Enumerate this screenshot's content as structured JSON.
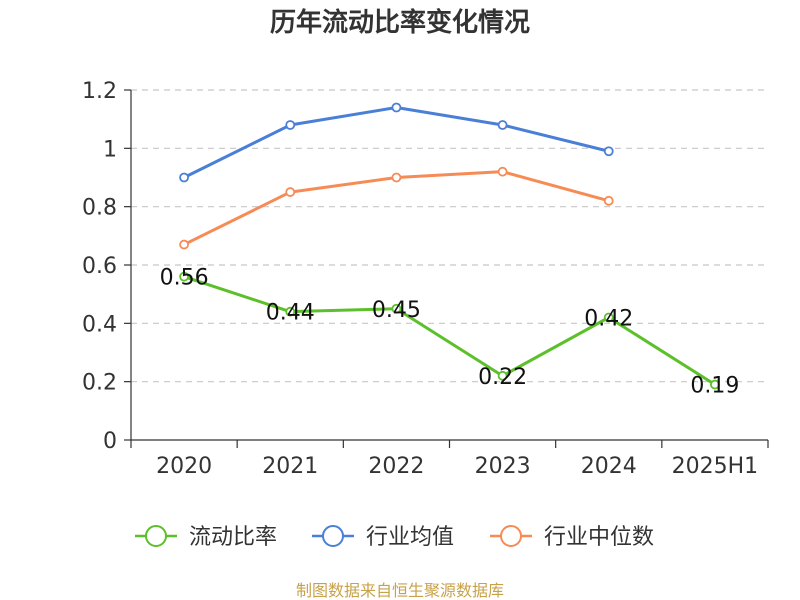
{
  "chart_data": {
    "type": "line",
    "title": "历年流动比率变化情况",
    "categories": [
      "2020",
      "2021",
      "2022",
      "2023",
      "2024",
      "2025H1"
    ],
    "ylim": [
      0,
      1.2
    ],
    "yticks": [
      "0",
      "0.2",
      "0.4",
      "0.6",
      "0.8",
      "1",
      "1.2"
    ],
    "grid": true,
    "legend_position": "bottom",
    "series": [
      {
        "name": "流动比率",
        "color": "#5cc02a",
        "values": [
          0.56,
          0.44,
          0.45,
          0.22,
          0.42,
          0.19
        ],
        "labels": [
          "0.56",
          "0.44",
          "0.45",
          "0.22",
          "0.42",
          "0.19"
        ]
      },
      {
        "name": "行业均值",
        "color": "#4a7fd8",
        "values": [
          0.9,
          1.08,
          1.14,
          1.08,
          0.99,
          null
        ]
      },
      {
        "name": "行业中位数",
        "color": "#f78b56",
        "values": [
          0.67,
          0.85,
          0.9,
          0.92,
          0.82,
          null
        ]
      }
    ]
  },
  "source": "制图数据来自恒生聚源数据库"
}
